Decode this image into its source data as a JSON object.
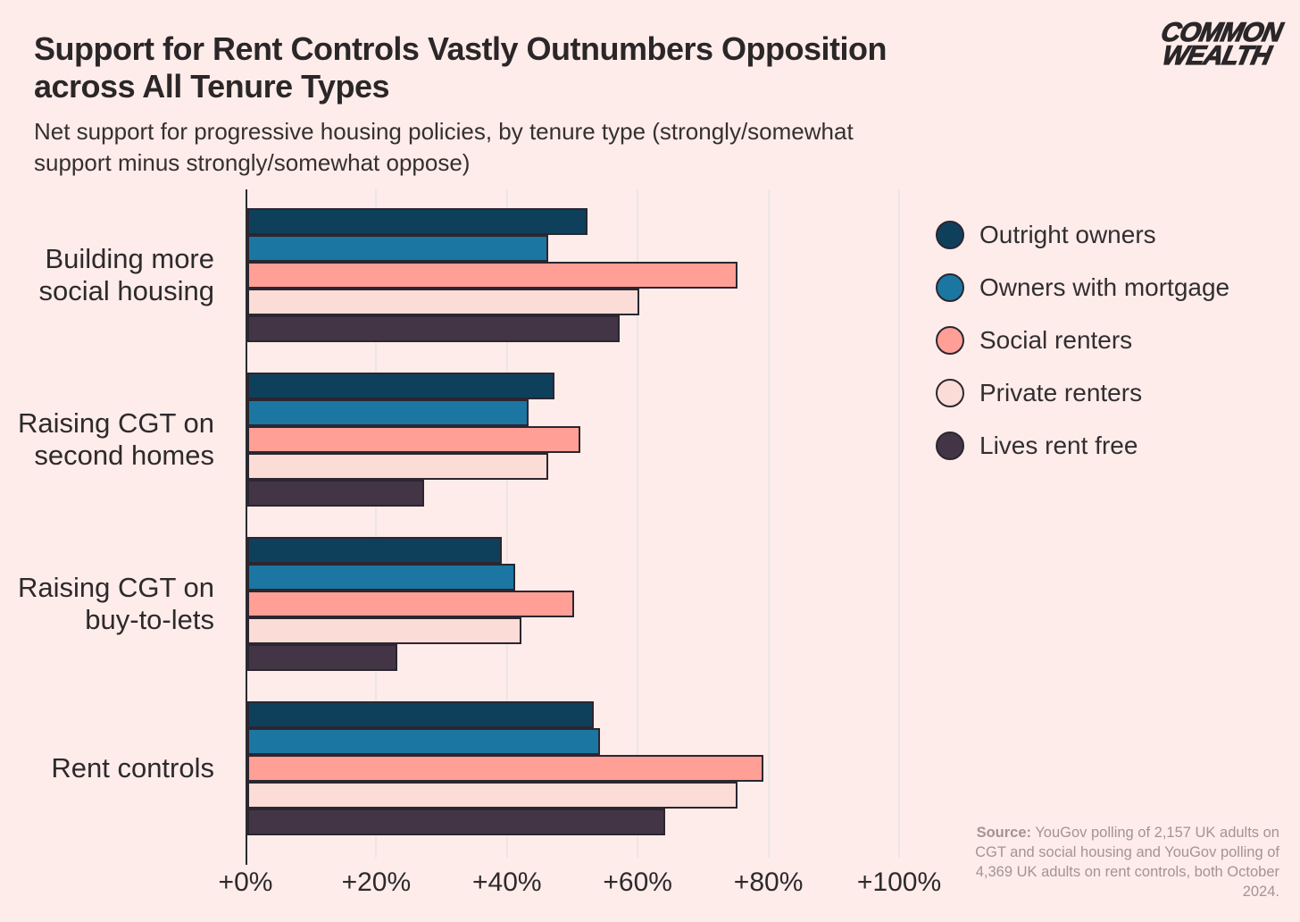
{
  "header": {
    "title": "Support for Rent Controls Vastly Outnumbers Opposition across All Tenure Types",
    "subtitle": "Net support for progressive housing policies, by tenure type (strongly/somewhat support minus strongly/somewhat oppose)"
  },
  "logo": {
    "line1": "COMMON",
    "line2": "WEALTH"
  },
  "chart_data": {
    "type": "bar",
    "orientation": "horizontal",
    "title": "Support for Rent Controls Vastly Outnumbers Opposition across All Tenure Types",
    "subtitle": "Net support for progressive housing policies, by tenure type (strongly/somewhat support minus strongly/somewhat oppose)",
    "categories": [
      "Building more social housing",
      "Raising CGT on second homes",
      "Raising CGT on buy-to-lets",
      "Rent controls"
    ],
    "series": [
      {
        "name": "Outright owners",
        "color": "#0e405c",
        "values": [
          52,
          47,
          39,
          53
        ]
      },
      {
        "name": "Owners with mortgage",
        "color": "#1b76a2",
        "values": [
          46,
          43,
          41,
          54
        ]
      },
      {
        "name": "Social renters",
        "color": "#ff9f96",
        "values": [
          75,
          51,
          50,
          79
        ]
      },
      {
        "name": "Private renters",
        "color": "#fcdcd6",
        "values": [
          60,
          46,
          42,
          75
        ]
      },
      {
        "name": "Lives rent free",
        "color": "#433546",
        "values": [
          57,
          27,
          23,
          64
        ]
      }
    ],
    "unit": "%",
    "xlim": [
      0,
      100
    ],
    "x_ticks": [
      {
        "label": "+0%",
        "value": 0
      },
      {
        "label": "+20%",
        "value": 20
      },
      {
        "label": "+40%",
        "value": 40
      },
      {
        "label": "+60%",
        "value": 60
      },
      {
        "label": "+80%",
        "value": 80
      },
      {
        "label": "+100%",
        "value": 100
      }
    ],
    "grid": true,
    "legend_position": "right"
  },
  "source": {
    "label": "Source:",
    "text": " YouGov polling of 2,157 UK adults on CGT and social housing and YouGov polling of 4,369 UK adults on rent controls, both October 2024."
  },
  "colors": {
    "background": "#fdecea",
    "axis_line": "#2e2a2d",
    "gridline": "#ece6e4",
    "bar_border": "#2b2630",
    "text_dark": "#2b2628",
    "text_muted": "#a29395"
  }
}
